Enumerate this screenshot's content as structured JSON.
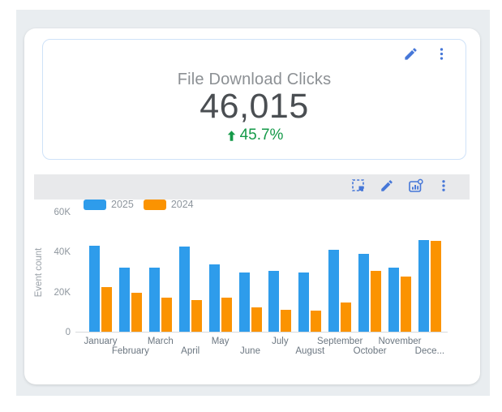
{
  "kpi": {
    "title": "File Download Clicks",
    "value": "46,015",
    "delta": "45.7%",
    "delta_direction": "up",
    "actions": [
      "edit",
      "more-options"
    ]
  },
  "chart_toolbar": {
    "actions": [
      "select-area",
      "edit",
      "insights",
      "more-options"
    ]
  },
  "chart_data": {
    "type": "bar",
    "title": "",
    "categories": [
      "January",
      "February",
      "March",
      "April",
      "May",
      "June",
      "July",
      "August",
      "September",
      "October",
      "November",
      "December"
    ],
    "xtick_labels": [
      "January",
      "February",
      "March",
      "April",
      "May",
      "June",
      "July",
      "August",
      "September",
      "October",
      "November",
      "Dece..."
    ],
    "series": [
      {
        "name": "2025",
        "color": "#2e9ceb",
        "values": [
          43000,
          32000,
          32000,
          42500,
          33500,
          29500,
          30500,
          29500,
          41000,
          39000,
          32000,
          46000
        ]
      },
      {
        "name": "2024",
        "color": "#fb9301",
        "values": [
          22500,
          19500,
          17000,
          16000,
          17000,
          12000,
          11000,
          10500,
          14500,
          30500,
          27500,
          45500
        ]
      }
    ],
    "ylabel": "Event count",
    "ylim": [
      0,
      60000
    ],
    "yticks": [
      "60K",
      "40K",
      "20K",
      "0"
    ],
    "legend_position": "top-left",
    "grid": false
  },
  "colors": {
    "accent_blue_icons": "#4677d8",
    "delta_green": "#159a49",
    "series_2025": "#2e9ceb",
    "series_2024": "#fb9301",
    "panel_background": "#e9edf0",
    "kpi_border": "#cfe2f8",
    "toolbar_background": "#e8e9eb"
  }
}
